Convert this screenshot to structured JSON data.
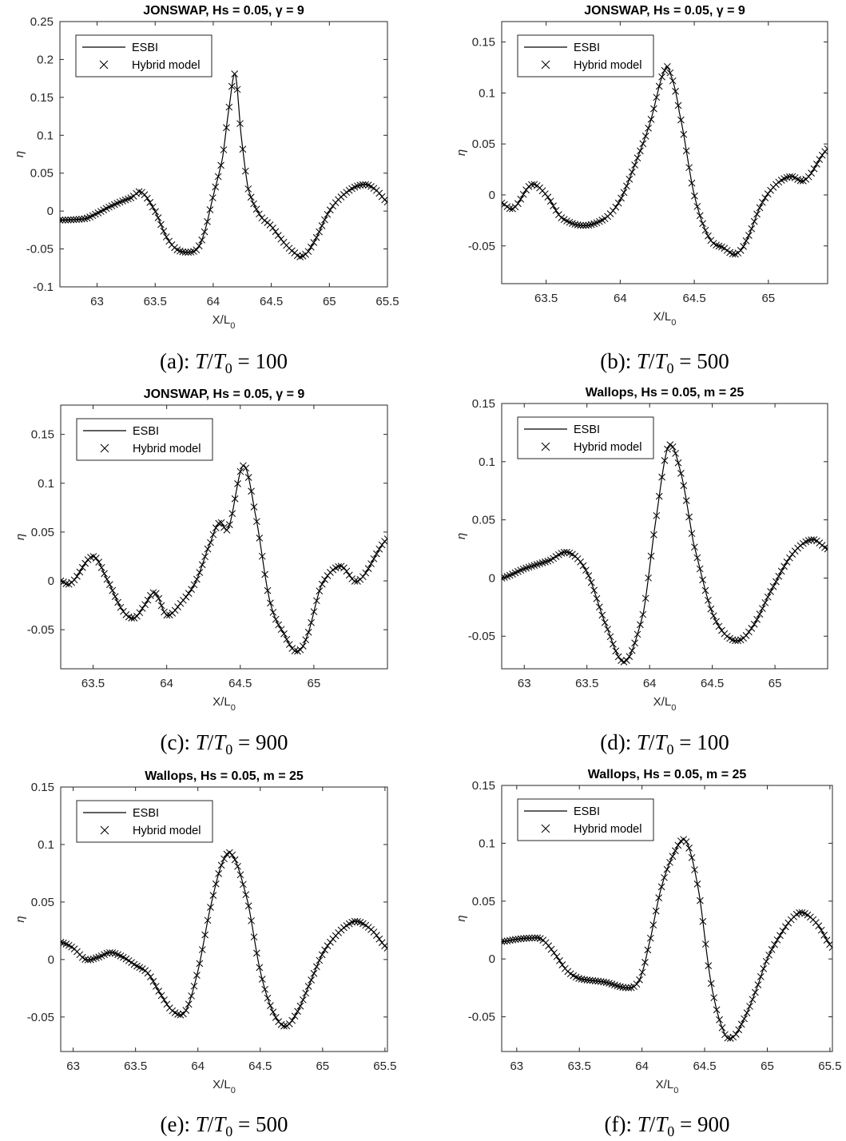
{
  "chart_data": [
    {
      "type": "line",
      "title": "JONSWAP, Hs = 0.05, γ = 9",
      "caption": "(a): T/T0 = 100",
      "xlabel": "X/L0",
      "ylabel": "η",
      "xlim": [
        62.68,
        65.5
      ],
      "ylim": [
        -0.1,
        0.25
      ],
      "xticks": [
        63,
        63.5,
        64,
        64.5,
        65,
        65.5
      ],
      "yticks": [
        -0.1,
        -0.05,
        0,
        0.05,
        0.1,
        0.15,
        0.2,
        0.25
      ],
      "legend": [
        "ESBI",
        "Hybrid model"
      ],
      "legend_position": "top-left",
      "series": [
        {
          "name": "ESBI",
          "marker": "line",
          "x": [
            62.68,
            62.9,
            63.0,
            63.1,
            63.2,
            63.3,
            63.38,
            63.5,
            63.6,
            63.7,
            63.85,
            63.92,
            64.0,
            64.08,
            64.14,
            64.19,
            64.24,
            64.3,
            64.4,
            64.5,
            64.6,
            64.7,
            64.76,
            64.85,
            65.0,
            65.15,
            65.3,
            65.4,
            65.5
          ],
          "y": [
            -0.012,
            -0.01,
            -0.003,
            0.005,
            0.012,
            0.018,
            0.025,
            0.0,
            -0.035,
            -0.052,
            -0.052,
            -0.03,
            0.02,
            0.07,
            0.14,
            0.18,
            0.1,
            0.03,
            -0.005,
            -0.02,
            -0.04,
            -0.055,
            -0.06,
            -0.045,
            0.0,
            0.025,
            0.035,
            0.028,
            0.012
          ]
        },
        {
          "name": "Hybrid model",
          "marker": "x",
          "from": "ESBI"
        }
      ]
    },
    {
      "type": "line",
      "title": "JONSWAP, Hs = 0.05, γ = 9",
      "caption": "(b): T/T0 = 500",
      "xlabel": "X/L0",
      "ylabel": "η",
      "xlim": [
        63.2,
        65.4
      ],
      "ylim": [
        -0.087,
        0.17
      ],
      "xticks": [
        63.5,
        64,
        64.5,
        65
      ],
      "yticks": [
        -0.05,
        0,
        0.05,
        0.1,
        0.15
      ],
      "legend": [
        "ESBI",
        "Hybrid model"
      ],
      "legend_position": "top-left",
      "series": [
        {
          "name": "ESBI",
          "marker": "line",
          "x": [
            63.2,
            63.28,
            63.4,
            63.5,
            63.6,
            63.75,
            63.9,
            64.0,
            64.1,
            64.2,
            64.3,
            64.34,
            64.4,
            64.5,
            64.6,
            64.7,
            64.78,
            64.85,
            64.95,
            65.05,
            65.15,
            65.25,
            65.4
          ],
          "y": [
            -0.008,
            -0.013,
            0.01,
            0.0,
            -0.022,
            -0.03,
            -0.023,
            -0.005,
            0.03,
            0.07,
            0.122,
            0.118,
            0.08,
            0.0,
            -0.042,
            -0.052,
            -0.058,
            -0.045,
            -0.01,
            0.01,
            0.018,
            0.015,
            0.045
          ]
        },
        {
          "name": "Hybrid model",
          "marker": "x",
          "from": "ESBI"
        }
      ]
    },
    {
      "type": "line",
      "title": "JONSWAP, Hs = 0.05, γ = 9",
      "caption": "(c): T/T0 = 900",
      "xlabel": "X/L0",
      "ylabel": "η",
      "xlim": [
        63.28,
        65.5
      ],
      "ylim": [
        -0.09,
        0.18
      ],
      "xticks": [
        63.5,
        64,
        64.5,
        65
      ],
      "yticks": [
        -0.05,
        0,
        0.05,
        0.1,
        0.15
      ],
      "legend": [
        "ESBI",
        "Hybrid model"
      ],
      "legend_position": "top-left",
      "series": [
        {
          "name": "ESBI",
          "marker": "line",
          "x": [
            63.28,
            63.35,
            63.5,
            63.6,
            63.7,
            63.78,
            63.85,
            63.92,
            64.0,
            64.1,
            64.2,
            64.3,
            64.36,
            64.42,
            64.52,
            64.6,
            64.7,
            64.8,
            64.88,
            64.95,
            65.05,
            65.18,
            65.3,
            65.5
          ],
          "y": [
            0.0,
            -0.002,
            0.025,
            0.0,
            -0.03,
            -0.038,
            -0.025,
            -0.012,
            -0.035,
            -0.022,
            0.0,
            0.04,
            0.06,
            0.055,
            0.118,
            0.07,
            -0.02,
            -0.055,
            -0.072,
            -0.058,
            -0.005,
            0.015,
            0.0,
            0.043
          ]
        },
        {
          "name": "Hybrid model",
          "marker": "x",
          "from": "ESBI"
        }
      ]
    },
    {
      "type": "line",
      "title": "Wallops, Hs = 0.05, m = 25",
      "caption": "(d): T/T0 = 100",
      "xlabel": "X/L0",
      "ylabel": "η",
      "xlim": [
        62.82,
        65.42
      ],
      "ylim": [
        -0.078,
        0.15
      ],
      "xticks": [
        63,
        63.5,
        64,
        64.5,
        65
      ],
      "yticks": [
        -0.05,
        0,
        0.05,
        0.1,
        0.15
      ],
      "legend": [
        "ESBI",
        "Hybrid model"
      ],
      "legend_position": "top-left",
      "series": [
        {
          "name": "ESBI",
          "marker": "line",
          "x": [
            62.82,
            63.0,
            63.2,
            63.35,
            63.5,
            63.65,
            63.8,
            63.95,
            64.05,
            64.15,
            64.25,
            64.35,
            64.5,
            64.66,
            64.8,
            65.0,
            65.15,
            65.3,
            65.42
          ],
          "y": [
            0.0,
            0.008,
            0.015,
            0.022,
            0.005,
            -0.04,
            -0.072,
            -0.03,
            0.05,
            0.113,
            0.09,
            0.03,
            -0.03,
            -0.053,
            -0.045,
            -0.005,
            0.022,
            0.033,
            0.025
          ]
        },
        {
          "name": "Hybrid model",
          "marker": "x",
          "from": "ESBI"
        }
      ]
    },
    {
      "type": "line",
      "title": "Wallops, Hs = 0.05, m = 25",
      "caption": "(e): T/T0 = 500",
      "xlabel": "X/L0",
      "ylabel": "η",
      "xlim": [
        62.9,
        65.52
      ],
      "ylim": [
        -0.08,
        0.15
      ],
      "xticks": [
        63,
        63.5,
        64,
        64.5,
        65,
        65.5
      ],
      "yticks": [
        -0.05,
        0,
        0.05,
        0.1,
        0.15
      ],
      "legend": [
        "ESBI",
        "Hybrid model"
      ],
      "legend_position": "top-left",
      "series": [
        {
          "name": "ESBI",
          "marker": "line",
          "x": [
            62.9,
            63.0,
            63.1,
            63.2,
            63.3,
            63.4,
            63.5,
            63.6,
            63.7,
            63.8,
            63.9,
            64.0,
            64.1,
            64.2,
            64.28,
            64.4,
            64.5,
            64.6,
            64.7,
            64.8,
            64.9,
            65.0,
            65.1,
            65.2,
            65.28,
            65.4,
            65.52
          ],
          "y": [
            0.015,
            0.01,
            0.0,
            0.002,
            0.006,
            0.002,
            -0.005,
            -0.012,
            -0.03,
            -0.045,
            -0.045,
            -0.01,
            0.045,
            0.085,
            0.09,
            0.05,
            -0.01,
            -0.045,
            -0.058,
            -0.045,
            -0.02,
            0.005,
            0.02,
            0.03,
            0.033,
            0.025,
            0.01
          ]
        },
        {
          "name": "Hybrid model",
          "marker": "x",
          "from": "ESBI"
        }
      ]
    },
    {
      "type": "line",
      "title": "Wallops, Hs = 0.05, m = 25",
      "caption": "(f): T/T0 = 900",
      "xlabel": "X/L0",
      "ylabel": "η",
      "xlim": [
        62.88,
        65.52
      ],
      "ylim": [
        -0.08,
        0.15
      ],
      "xticks": [
        63,
        63.5,
        64,
        64.5,
        65,
        65.5
      ],
      "yticks": [
        -0.05,
        0,
        0.05,
        0.1,
        0.15
      ],
      "legend": [
        "ESBI",
        "Hybrid model"
      ],
      "legend_position": "top-left",
      "series": [
        {
          "name": "ESBI",
          "marker": "line",
          "x": [
            62.88,
            63.0,
            63.1,
            63.2,
            63.3,
            63.4,
            63.5,
            63.7,
            63.9,
            63.98,
            64.05,
            64.15,
            64.25,
            64.35,
            64.45,
            64.55,
            64.65,
            64.72,
            64.8,
            64.9,
            65.0,
            65.1,
            65.2,
            65.28,
            65.4,
            65.52
          ],
          "y": [
            0.015,
            0.017,
            0.018,
            0.017,
            0.005,
            -0.01,
            -0.017,
            -0.02,
            -0.025,
            -0.018,
            0.01,
            0.06,
            0.09,
            0.102,
            0.06,
            -0.02,
            -0.062,
            -0.068,
            -0.055,
            -0.03,
            0.0,
            0.02,
            0.035,
            0.04,
            0.03,
            0.01
          ]
        },
        {
          "name": "Hybrid model",
          "marker": "x",
          "from": "ESBI"
        }
      ]
    }
  ],
  "captions": [
    {
      "prefix": "(a):",
      "lhs_num": "T",
      "lhs_den": "T",
      "sub": "0",
      "eq": "= 100"
    },
    {
      "prefix": "(b):",
      "lhs_num": "T",
      "lhs_den": "T",
      "sub": "0",
      "eq": "= 500"
    },
    {
      "prefix": "(c):",
      "lhs_num": "T",
      "lhs_den": "T",
      "sub": "0",
      "eq": "= 900"
    },
    {
      "prefix": "(d):",
      "lhs_num": "T",
      "lhs_den": "T",
      "sub": "0",
      "eq": "= 100"
    },
    {
      "prefix": "(e):",
      "lhs_num": "T",
      "lhs_den": "T",
      "sub": "0",
      "eq": "= 500"
    },
    {
      "prefix": "(f):",
      "lhs_num": "T",
      "lhs_den": "T",
      "sub": "0",
      "eq": "= 900"
    }
  ],
  "axis_text": {
    "x_main": "X/L",
    "x_sub": "0",
    "y": "η"
  },
  "colors": {
    "line": "#000000",
    "axes": "#262626"
  }
}
